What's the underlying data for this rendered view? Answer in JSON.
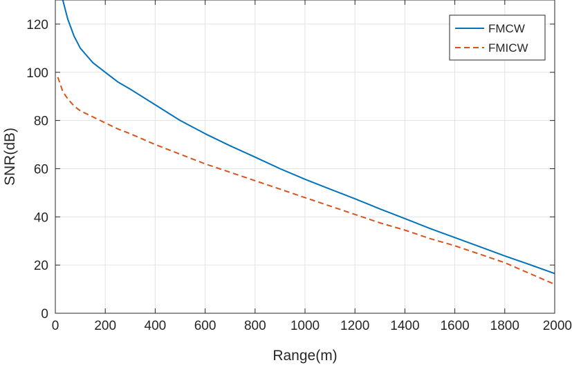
{
  "chart_data": {
    "type": "line",
    "xlabel": "Range(m)",
    "ylabel": "SNR(dB)",
    "xlim": [
      0,
      2000
    ],
    "ylim": [
      0,
      130
    ],
    "xticks": [
      0,
      200,
      400,
      600,
      800,
      1000,
      1200,
      1400,
      1600,
      1800,
      2000
    ],
    "yticks": [
      0,
      20,
      40,
      60,
      80,
      100,
      120
    ],
    "grid": true,
    "legend_position": "top-right",
    "series": [
      {
        "name": "FMCW",
        "color": "#0072BD",
        "line_style": "solid",
        "x": [
          30,
          50,
          75,
          100,
          150,
          200,
          250,
          300,
          400,
          500,
          600,
          700,
          800,
          900,
          1000,
          1100,
          1200,
          1300,
          1400,
          1500,
          1600,
          1700,
          1800,
          1900,
          2000
        ],
        "y": [
          130,
          122,
          115,
          110,
          104,
          100,
          96,
          93,
          86.5,
          80,
          74.5,
          69.5,
          64.8,
          60,
          55.6,
          51.5,
          47.5,
          43.3,
          39.3,
          35.2,
          31.4,
          27.6,
          23.8,
          20.2,
          16.5
        ]
      },
      {
        "name": "FMICW",
        "color": "#D95319",
        "line_style": "dashed",
        "x": [
          10,
          20,
          30,
          50,
          75,
          100,
          150,
          200,
          250,
          300,
          400,
          500,
          600,
          700,
          800,
          900,
          1000,
          1100,
          1200,
          1300,
          1400,
          1500,
          1600,
          1700,
          1800,
          1900,
          2000
        ],
        "y": [
          98,
          95,
          92,
          89,
          86,
          84,
          81.5,
          79,
          76.5,
          74.5,
          70,
          66,
          62,
          58.5,
          55,
          51.5,
          48,
          44.5,
          41,
          37.5,
          34.5,
          31,
          28,
          24.5,
          21,
          16.5,
          12
        ]
      }
    ]
  }
}
